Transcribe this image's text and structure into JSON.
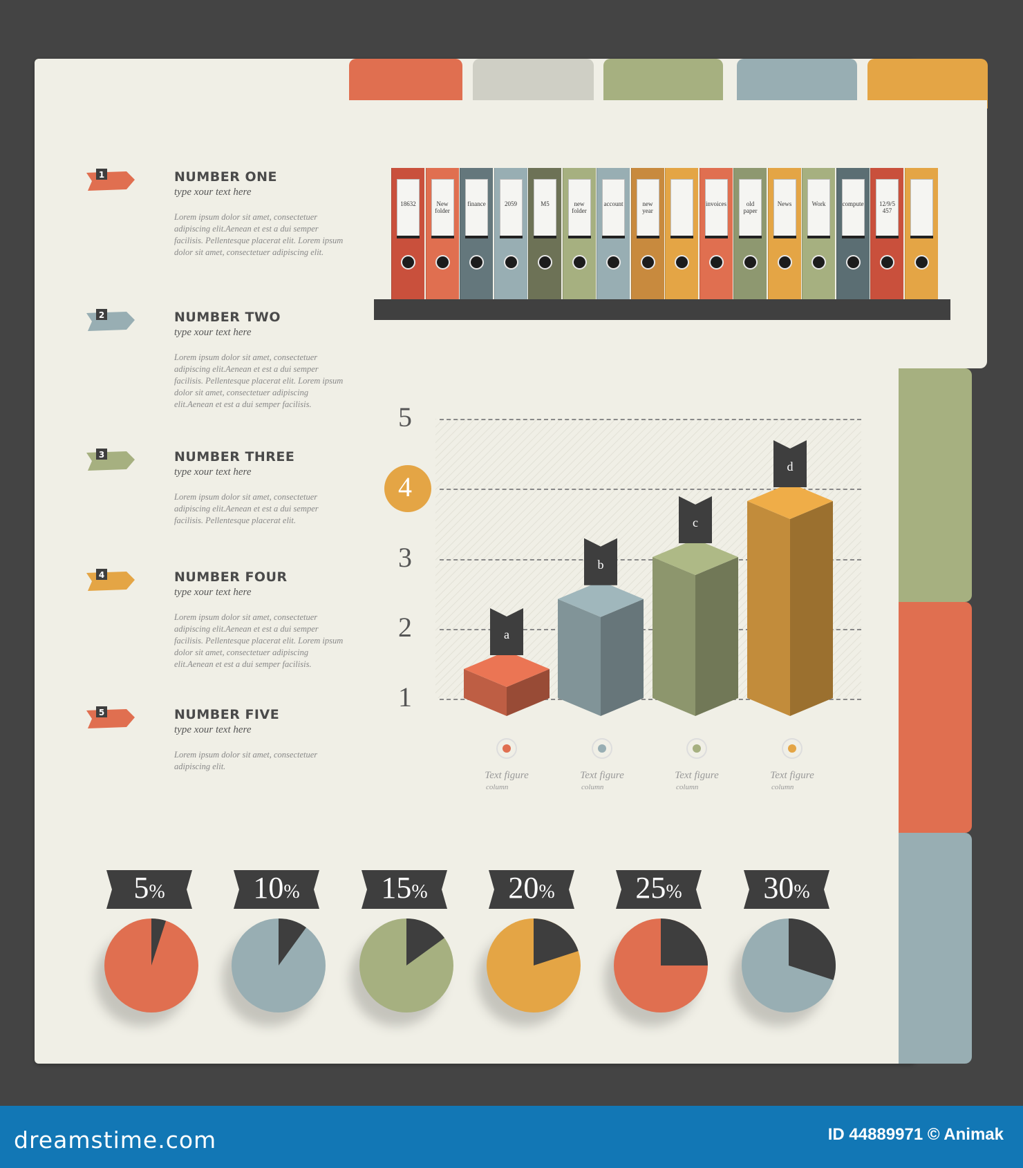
{
  "colors": {
    "background": "#444444",
    "sheet": "#f0efe6",
    "red": "#e06f50",
    "blue": "#98aeb3",
    "green": "#a6b080",
    "orange": "#e4a545",
    "gray": "#cfcfc5",
    "dark": "#3e3e3e",
    "footer": "#1277b5"
  },
  "tabs": [
    {
      "name": "red",
      "color": "#e06f50"
    },
    {
      "name": "gray",
      "color": "#cfcfc5"
    },
    {
      "name": "green",
      "color": "#a6b080"
    },
    {
      "name": "blue",
      "color": "#98aeb3"
    },
    {
      "name": "orange",
      "color": "#e4a545"
    }
  ],
  "side_tabs": [
    {
      "name": "green",
      "color": "#a6b080"
    },
    {
      "name": "red",
      "color": "#e06f50"
    },
    {
      "name": "blue",
      "color": "#98aeb3"
    }
  ],
  "items": [
    {
      "badge": "1",
      "color": "#e06f50",
      "title": "NUMBER ONE",
      "subtitle": "type xour text here",
      "body": "Lorem ipsum dolor sit amet, consectetuer adipiscing elit.Aenean et est a dui semper facilisis. Pellentesque placerat elit. Lorem ipsum dolor sit amet, consectetuer adipiscing elit."
    },
    {
      "badge": "2",
      "color": "#98aeb3",
      "title": "NUMBER TWO",
      "subtitle": "type xour text here",
      "body": "Lorem ipsum dolor sit amet, consectetuer adipiscing elit.Aenean et est a dui semper facilisis. Pellentesque placerat elit. Lorem ipsum dolor sit amet, consectetuer adipiscing elit.Aenean et est a dui semper facilisis."
    },
    {
      "badge": "3",
      "color": "#a6b080",
      "title": "NUMBER THREE",
      "subtitle": "type xour text here",
      "body": "Lorem ipsum dolor sit amet, consectetuer adipiscing elit.Aenean et est a dui semper facilisis. Pellentesque placerat elit."
    },
    {
      "badge": "4",
      "color": "#e4a545",
      "title": "NUMBER FOUR",
      "subtitle": "type xour text here",
      "body": "Lorem ipsum dolor sit amet, consectetuer adipiscing elit.Aenean et est a dui semper facilisis. Pellentesque placerat elit. Lorem ipsum dolor sit amet, consectetuer adipiscing elit.Aenean et est a dui semper facilisis."
    },
    {
      "badge": "5",
      "color": "#e06f50",
      "title": "NUMBER FIVE",
      "subtitle": "type xour text here",
      "body": "Lorem ipsum dolor sit amet, consectetuer adipiscing elit."
    }
  ],
  "binders": [
    {
      "color": "#c9503c",
      "label": "18632"
    },
    {
      "color": "#e06f50",
      "label": "New folder"
    },
    {
      "color": "#64777c",
      "label": "finance"
    },
    {
      "color": "#98aeb3",
      "label": "2059"
    },
    {
      "color": "#6d7256",
      "label": "M5"
    },
    {
      "color": "#a6b080",
      "label": "new folder"
    },
    {
      "color": "#98aeb3",
      "label": "account"
    },
    {
      "color": "#c88a3e",
      "label": "new year"
    },
    {
      "color": "#e4a545",
      "label": ""
    },
    {
      "color": "#e06f50",
      "label": "invoices"
    },
    {
      "color": "#8e9870",
      "label": "old paper"
    },
    {
      "color": "#e4a545",
      "label": "News"
    },
    {
      "color": "#a6b080",
      "label": "Work"
    },
    {
      "color": "#5b6e73",
      "label": "computer"
    },
    {
      "color": "#c9503c",
      "label": "12/9/5 457"
    },
    {
      "color": "#e4a545",
      "label": ""
    }
  ],
  "chart_data": [
    {
      "type": "bar",
      "categories": [
        "a",
        "b",
        "c",
        "d"
      ],
      "values": [
        1.8,
        2.8,
        3.4,
        4.2
      ],
      "colors": [
        "#e06f50",
        "#98aeb3",
        "#a6b080",
        "#e4a545"
      ],
      "y_ticks": [
        "1",
        "2",
        "3",
        "4",
        "5"
      ],
      "highlighted_tick": "4",
      "ylim": [
        1,
        5
      ],
      "grid": true,
      "x_labels": [
        {
          "label": "Text figure",
          "sub": "column"
        },
        {
          "label": "Text figure",
          "sub": "column"
        },
        {
          "label": "Text figure",
          "sub": "column"
        },
        {
          "label": "Text figure",
          "sub": "column"
        }
      ]
    },
    {
      "type": "pie",
      "values": [
        5,
        10,
        15,
        20,
        25,
        30
      ],
      "labels": [
        "5",
        "10",
        "15",
        "20",
        "25",
        "30"
      ],
      "unit": "%",
      "colors": [
        "#e06f50",
        "#98aeb3",
        "#a6b080",
        "#e4a545",
        "#e06f50",
        "#98aeb3"
      ],
      "slice_color": "#3e3e3e"
    }
  ],
  "footer": {
    "brand": "dreamstime.com",
    "id_text": "ID 44889971 © Animak"
  }
}
